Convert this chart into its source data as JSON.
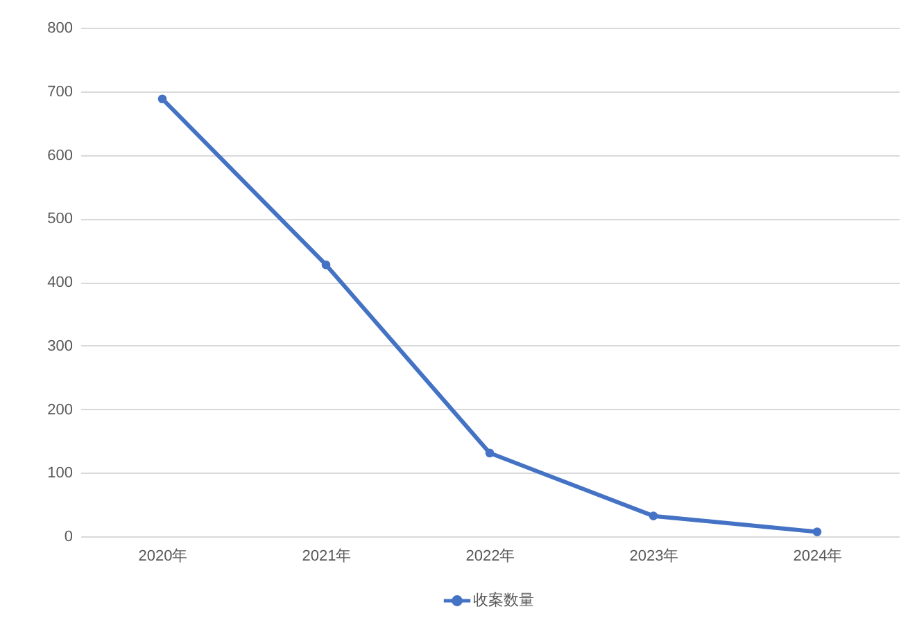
{
  "chart_data": {
    "type": "line",
    "categories": [
      "2020年",
      "2021年",
      "2022年",
      "2023年",
      "2024年"
    ],
    "series": [
      {
        "name": "收案数量",
        "color": "#4472c4",
        "values": [
          688,
          427,
          131,
          32,
          7
        ]
      }
    ],
    "ylim": [
      0,
      800
    ],
    "yticks": [
      0,
      100,
      200,
      300,
      400,
      500,
      600,
      700,
      800
    ],
    "grid": "y",
    "legend": "bottom",
    "marker": "circle",
    "line_style": "solid"
  }
}
